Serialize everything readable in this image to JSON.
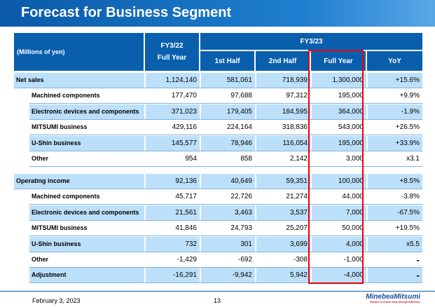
{
  "title": "Forecast for Business Segment",
  "header": {
    "unit": "(Millions of yen)",
    "fy22": "FY3/22",
    "fy22_sub": "Full Year",
    "fy23": "FY3/23",
    "cols": [
      "1st Half",
      "2nd Half",
      "Full Year",
      "YoY"
    ]
  },
  "sections": [
    {
      "rows": [
        {
          "label": "Net sales",
          "values": [
            "1,124,140",
            "581,061",
            "718,939",
            "1,300,000",
            "+15.6%"
          ]
        },
        {
          "label": "Machined components",
          "values": [
            "177,470",
            "97,688",
            "97,312",
            "195,000",
            "+9.9%"
          ]
        },
        {
          "label": "Electronic devices and components",
          "values": [
            "371,023",
            "179,405",
            "184,595",
            "364,000",
            "-1.9%"
          ]
        },
        {
          "label": "MITSUMI business",
          "values": [
            "429,116",
            "224,164",
            "318,836",
            "543,000",
            "+26.5%"
          ]
        },
        {
          "label": "U-Shin business",
          "values": [
            "145,577",
            "78,946",
            "116,054",
            "195,000",
            "+33.9%"
          ]
        },
        {
          "label": "Other",
          "values": [
            "954",
            "858",
            "2,142",
            "3,000",
            "x3.1"
          ]
        }
      ]
    },
    {
      "rows": [
        {
          "label": "Operating income",
          "values": [
            "92,136",
            "40,649",
            "59,351",
            "100,000",
            "+8.5%"
          ]
        },
        {
          "label": "Machined components",
          "values": [
            "45,717",
            "22,726",
            "21,274",
            "44,000",
            "-3.8%"
          ]
        },
        {
          "label": "Electronic devices and components",
          "values": [
            "21,561",
            "3,463",
            "3,537",
            "7,000",
            "-67.5%"
          ]
        },
        {
          "label": "MITSUMI business",
          "values": [
            "41,846",
            "24,793",
            "25,207",
            "50,000",
            "+19.5%"
          ]
        },
        {
          "label": "U-Shin business",
          "values": [
            "732",
            "301",
            "3,699",
            "4,000",
            "x5.5"
          ]
        },
        {
          "label": "Other",
          "values": [
            "-1,429",
            "-692",
            "-308",
            "-1,000",
            "-"
          ]
        },
        {
          "label": "Adjustment",
          "values": [
            "-16,291",
            "-9,942",
            "5,942",
            "-4,000",
            "-"
          ]
        }
      ]
    }
  ],
  "footer": {
    "date": "February 3, 2023",
    "page": "13",
    "logo": "MinebeaMitsumi",
    "tagline": "Passion to Create Value through Difference"
  },
  "colors": {
    "header": "#0a5fad",
    "row_alt": "#bde0fa",
    "highlight": "#e8000b"
  }
}
